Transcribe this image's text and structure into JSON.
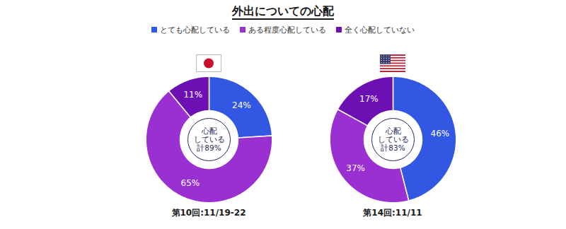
{
  "title": "外出についての心配",
  "legend": "top",
  "chart_data": [
    {
      "type": "pie",
      "subtitle": "第10回:11/19-22",
      "categories": [
        "とても心配している",
        "ある程度心配している",
        "全く心配していない"
      ],
      "values": [
        24,
        65,
        11
      ],
      "value_labels": [
        "24%",
        "65%",
        "11%"
      ],
      "colors": [
        "#3157e3",
        "#9b30d2",
        "#6c0fb3"
      ],
      "data_labels": true,
      "center_text": [
        "心配",
        "している",
        "計89%"
      ]
    },
    {
      "type": "pie",
      "subtitle": "第14回:11/11",
      "categories": [
        "とても心配している",
        "ある程度心配している",
        "全く心配していない"
      ],
      "values": [
        46,
        37,
        17
      ],
      "value_labels": [
        "46%",
        "37%",
        "17%"
      ],
      "colors": [
        "#3157e3",
        "#9b30d2",
        "#6c0fb3"
      ],
      "data_labels": true,
      "center_text": [
        "心配",
        "している",
        "計83%"
      ]
    }
  ]
}
